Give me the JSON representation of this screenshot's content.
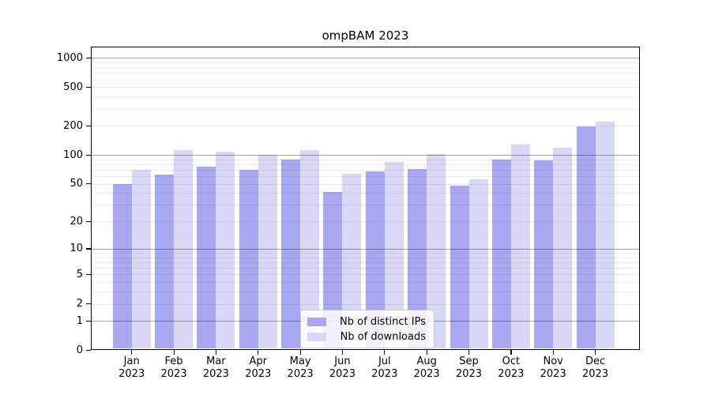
{
  "chart_data": {
    "type": "bar",
    "title": "ompBAM 2023",
    "scale": "log1p",
    "grid": "on",
    "legend_position": "bottom-center",
    "ylim": [
      0,
      1300
    ],
    "y_ticks": [
      0,
      1,
      2,
      5,
      10,
      20,
      50,
      100,
      200,
      500,
      1000
    ],
    "categories": [
      "Jan 2023",
      "Feb 2023",
      "Mar 2023",
      "Apr 2023",
      "May 2023",
      "Jun 2023",
      "Jul 2023",
      "Aug 2023",
      "Sep 2023",
      "Oct 2023",
      "Nov 2023",
      "Dec 2023"
    ],
    "series": [
      {
        "name": "Nb of distinct IPs",
        "color": "#a8a8f0",
        "values": [
          50,
          63,
          76,
          70,
          90,
          41,
          67,
          71,
          48,
          90,
          88,
          198
        ]
      },
      {
        "name": "Nb of downloads",
        "color": "#d8d8f6",
        "values": [
          70,
          112,
          109,
          101,
          112,
          64,
          85,
          103,
          56,
          129,
          119,
          222
        ]
      }
    ]
  }
}
